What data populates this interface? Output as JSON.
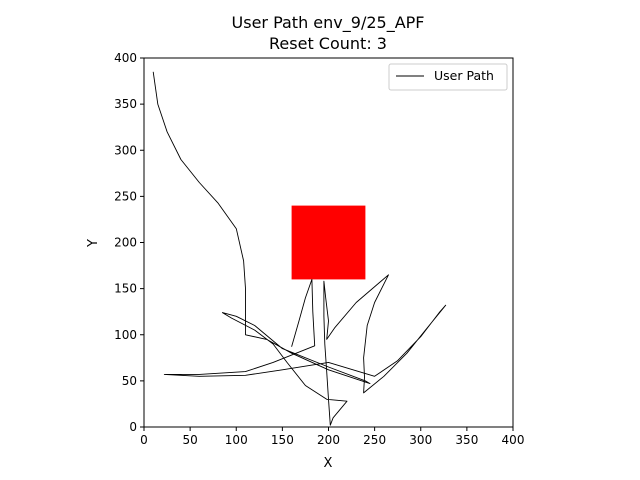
{
  "chart_data": {
    "type": "line",
    "title": "User Path env_9/25_APF",
    "subtitle": "Reset Count: 3",
    "xlabel": "X",
    "ylabel": "Y",
    "xlim": [
      0,
      400
    ],
    "ylim": [
      0,
      400
    ],
    "xticks": [
      0,
      50,
      100,
      150,
      200,
      250,
      300,
      350,
      400
    ],
    "yticks": [
      0,
      50,
      100,
      150,
      200,
      250,
      300,
      350,
      400
    ],
    "grid": false,
    "legend": {
      "position": "upper-right",
      "entries": [
        "User Path"
      ]
    },
    "series": [
      {
        "name": "User Path",
        "color": "#000000",
        "points": [
          [
            10,
            385
          ],
          [
            15,
            350
          ],
          [
            25,
            320
          ],
          [
            40,
            290
          ],
          [
            60,
            265
          ],
          [
            80,
            243
          ],
          [
            100,
            215
          ],
          [
            108,
            180
          ],
          [
            110,
            150
          ],
          [
            110,
            120
          ],
          [
            110,
            100
          ],
          [
            133,
            95
          ],
          [
            160,
            80
          ],
          [
            200,
            62
          ],
          [
            245,
            47
          ],
          [
            240,
            50
          ],
          [
            200,
            65
          ],
          [
            150,
            85
          ],
          [
            120,
            110
          ],
          [
            100,
            120
          ],
          [
            85,
            124
          ],
          [
            95,
            118
          ],
          [
            120,
            105
          ],
          [
            140,
            90
          ],
          [
            155,
            70
          ],
          [
            175,
            45
          ],
          [
            198,
            30
          ],
          [
            220,
            28
          ],
          [
            205,
            10
          ],
          [
            202,
            2
          ],
          [
            200,
            30
          ],
          [
            198,
            60
          ],
          [
            196,
            90
          ],
          [
            195,
            120
          ],
          [
            195,
            158
          ],
          [
            197,
            140
          ],
          [
            200,
            115
          ],
          [
            198,
            95
          ],
          [
            207,
            108
          ],
          [
            230,
            135
          ],
          [
            265,
            165
          ],
          [
            250,
            135
          ],
          [
            242,
            110
          ],
          [
            238,
            75
          ],
          [
            239,
            54
          ],
          [
            238,
            37
          ],
          [
            260,
            55
          ],
          [
            285,
            80
          ],
          [
            305,
            105
          ],
          [
            327,
            132
          ],
          [
            320,
            124
          ],
          [
            300,
            98
          ],
          [
            275,
            72
          ],
          [
            250,
            55
          ],
          [
            200,
            70
          ],
          [
            150,
            62
          ],
          [
            110,
            56
          ],
          [
            60,
            55
          ],
          [
            22,
            57
          ],
          [
            60,
            57
          ],
          [
            110,
            60
          ],
          [
            140,
            70
          ],
          [
            185,
            88
          ],
          [
            183,
            125
          ],
          [
            182,
            160
          ],
          [
            175,
            140
          ],
          [
            168,
            115
          ],
          [
            160,
            87
          ]
        ]
      }
    ],
    "fill_regions": [
      {
        "color": "#ff0000",
        "x": [
          160,
          240
        ],
        "y": [
          160,
          240
        ]
      }
    ]
  }
}
